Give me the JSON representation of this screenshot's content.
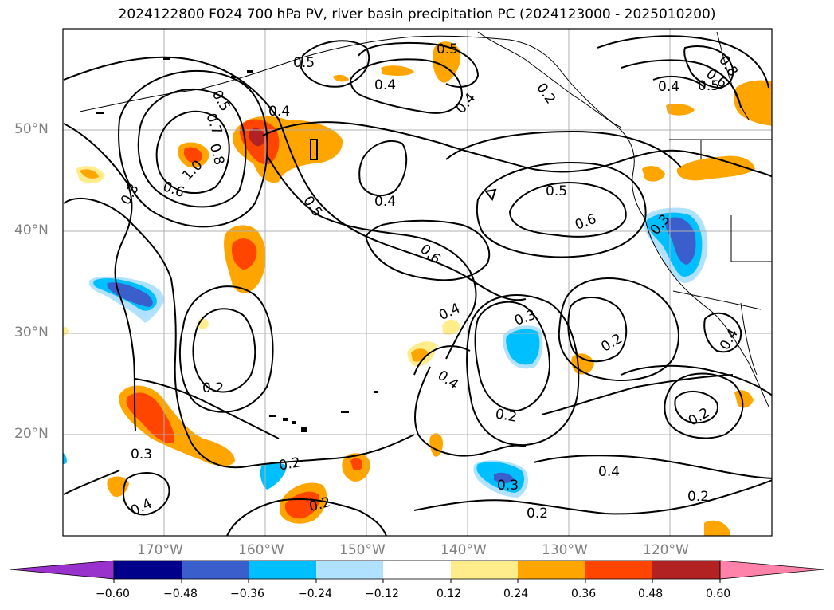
{
  "title": "2024122800 F024 700 hPa PV, river basin precipitation PC (2024123000 - 2025010200)",
  "axes": {
    "lat_labels": [
      "50°N",
      "40°N",
      "30°N",
      "20°N"
    ],
    "lon_labels": [
      "170°W",
      "160°W",
      "150°W",
      "140°W",
      "130°W",
      "120°W"
    ]
  },
  "contour_labels": [
    "0.5",
    "0.5",
    "0.4",
    "0.4",
    "0.4",
    "0.5",
    "0.7",
    "0.8",
    "1.0",
    "0.6",
    "0.3",
    "0.4",
    "0.5",
    "0.4",
    "0.5",
    "0.6",
    "0.8",
    "0.6",
    "0.5",
    "0.6",
    "0.2",
    "0.3",
    "0.4",
    "0.4",
    "0.3",
    "0.2",
    "0.2",
    "0.2",
    "0.3",
    "0.2",
    "0.4",
    "0.2",
    "0.3",
    "0.2",
    "0.4",
    "0.2",
    "0.2",
    "0.4"
  ],
  "colorbar": {
    "ticks": [
      "−0.60",
      "−0.48",
      "−0.36",
      "−0.24",
      "−0.12",
      "0.12",
      "0.24",
      "0.36",
      "0.48",
      "0.60"
    ],
    "colors": [
      "#9932cc",
      "#00008b",
      "#3a5fcd",
      "#00bfff",
      "#b0e2ff",
      "#ffffff",
      "#ffec8b",
      "#ffa500",
      "#ff4500",
      "#b22222",
      "#ff82ab"
    ]
  },
  "colors": {
    "frame": "#000000",
    "grid": "#b0b0b0",
    "tick_label": "#7f7f7f"
  }
}
